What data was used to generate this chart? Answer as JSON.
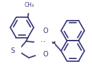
{
  "bg_color": "#ffffff",
  "bond_color": "#3a3a7a",
  "bond_width": 1.3,
  "label_color": "#3a3a7a",
  "figsize": [
    1.34,
    1.12
  ],
  "dpi": 100,
  "xlim": [
    0,
    134
  ],
  "ylim": [
    0,
    112
  ]
}
